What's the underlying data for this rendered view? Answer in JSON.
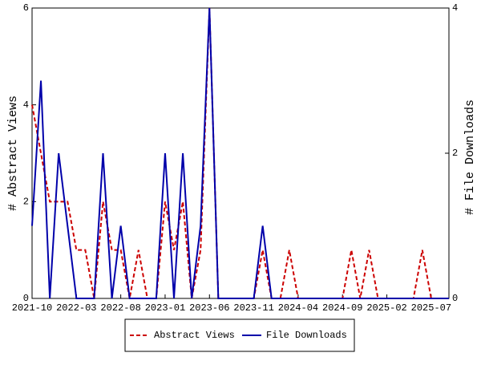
{
  "chart_data": {
    "type": "line",
    "categories": [
      "2021-10",
      null,
      null,
      null,
      null,
      "2022-03",
      null,
      null,
      null,
      null,
      "2022-08",
      null,
      null,
      null,
      null,
      "2023-01",
      null,
      null,
      null,
      null,
      "2023-06",
      null,
      null,
      null,
      null,
      "2023-11",
      null,
      null,
      null,
      null,
      "2024-04",
      null,
      null,
      null,
      null,
      "2024-09",
      null,
      null,
      null,
      null,
      "2025-02",
      null,
      null,
      null,
      null,
      "2025-07",
      null,
      null
    ],
    "series": [
      {
        "name": "Abstract Views",
        "color": "#cc0000",
        "dash": true,
        "values": [
          4,
          3,
          2,
          2,
          2,
          1,
          1,
          0,
          2,
          1,
          1,
          0,
          1,
          0,
          0,
          2,
          1,
          2,
          0,
          1,
          6,
          0,
          0,
          0,
          0,
          0,
          1,
          0,
          0,
          1,
          0,
          0,
          0,
          0,
          0,
          0,
          1,
          0,
          1,
          0,
          0,
          0,
          0,
          0,
          1,
          0,
          0,
          0
        ]
      },
      {
        "name": "File Downloads",
        "color": "#0000aa",
        "axis": "y2",
        "values": [
          1,
          3,
          0,
          2,
          1,
          0,
          0,
          0,
          2,
          0,
          1,
          0,
          0,
          0,
          0,
          2,
          0,
          2,
          0,
          1,
          4,
          0,
          0,
          0,
          0,
          0,
          1,
          0,
          0,
          0,
          0,
          0,
          0,
          0,
          0,
          0,
          0,
          0,
          0,
          0,
          0,
          0,
          0,
          0,
          0,
          0,
          0,
          0
        ]
      }
    ],
    "y_label": "# Abstract Views",
    "y2_label": "# File Downloads",
    "ylim": [
      0,
      6
    ],
    "yticks": [
      0,
      2,
      4,
      6
    ],
    "y2lim": [
      0,
      4
    ],
    "y2ticks": [
      0,
      2,
      4
    ],
    "legend": "bottom"
  }
}
